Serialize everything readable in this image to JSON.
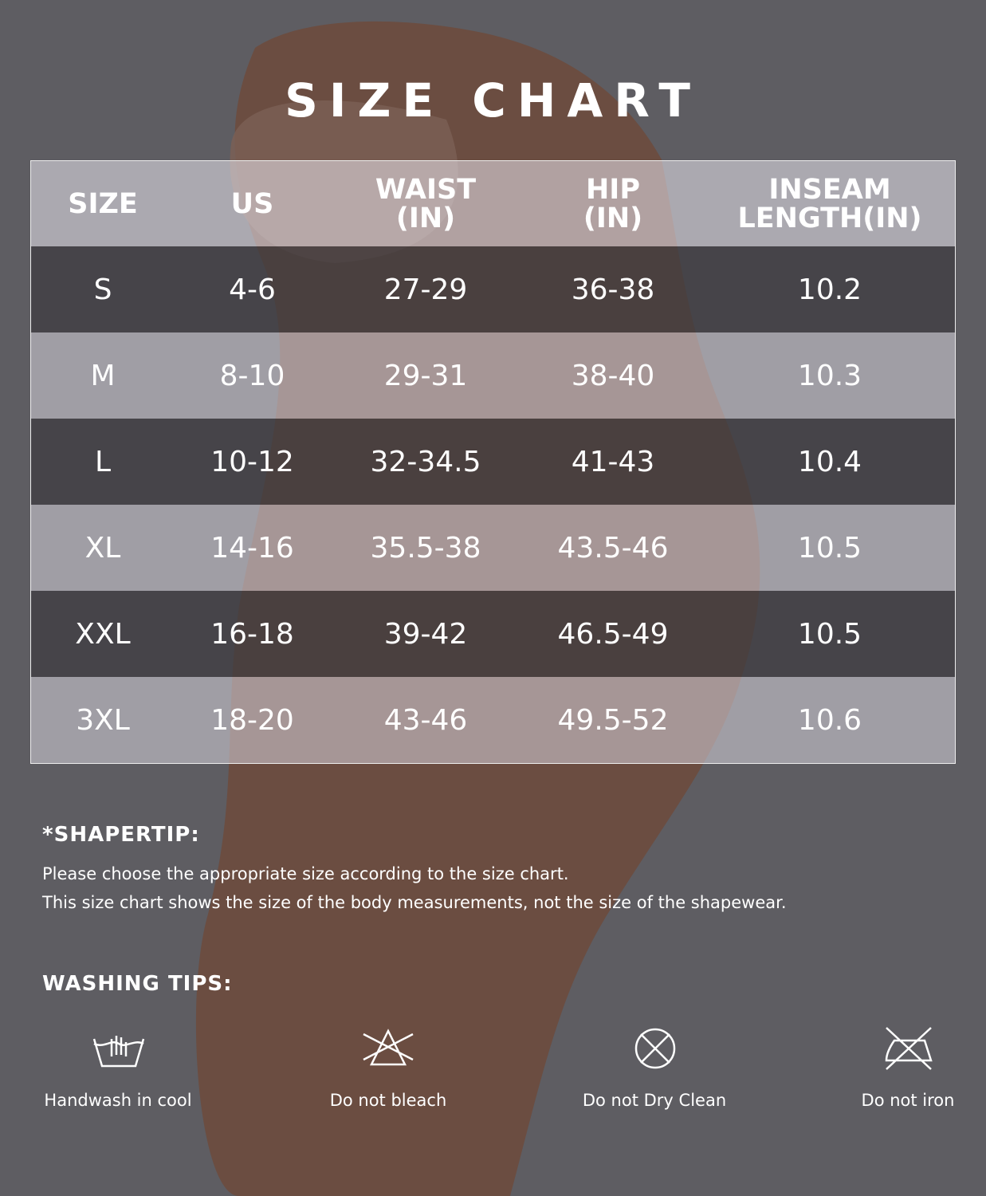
{
  "title": "SIZE CHART",
  "table": {
    "header": [
      [
        "SIZE"
      ],
      [
        "US"
      ],
      [
        "WAIST",
        "(IN)"
      ],
      [
        "HIP",
        "(IN)"
      ],
      [
        "INSEAM",
        "LENGTH(IN)"
      ]
    ],
    "rows": [
      [
        "S",
        "4-6",
        "27-29",
        "36-38",
        "10.2"
      ],
      [
        "M",
        "8-10",
        "29-31",
        "38-40",
        "10.3"
      ],
      [
        "L",
        "10-12",
        "32-34.5",
        "41-43",
        "10.4"
      ],
      [
        "XL",
        "14-16",
        "35.5-38",
        "43.5-46",
        "10.5"
      ],
      [
        "XXL",
        "16-18",
        "39-42",
        "46.5-49",
        "10.5"
      ],
      [
        "3XL",
        "18-20",
        "43-46",
        "49.5-52",
        "10.6"
      ]
    ]
  },
  "shapertip": {
    "title": "*SHAPERTIP:",
    "lines": [
      "Please choose the appropriate size according to the size chart.",
      "This size chart shows the size of the body measurements, not the size of the shapewear."
    ]
  },
  "washing": {
    "title": "WASHING TIPS:",
    "items": [
      "Handwash in cool",
      "Do not bleach",
      "Do not Dry Clean",
      "Do not iron"
    ]
  }
}
